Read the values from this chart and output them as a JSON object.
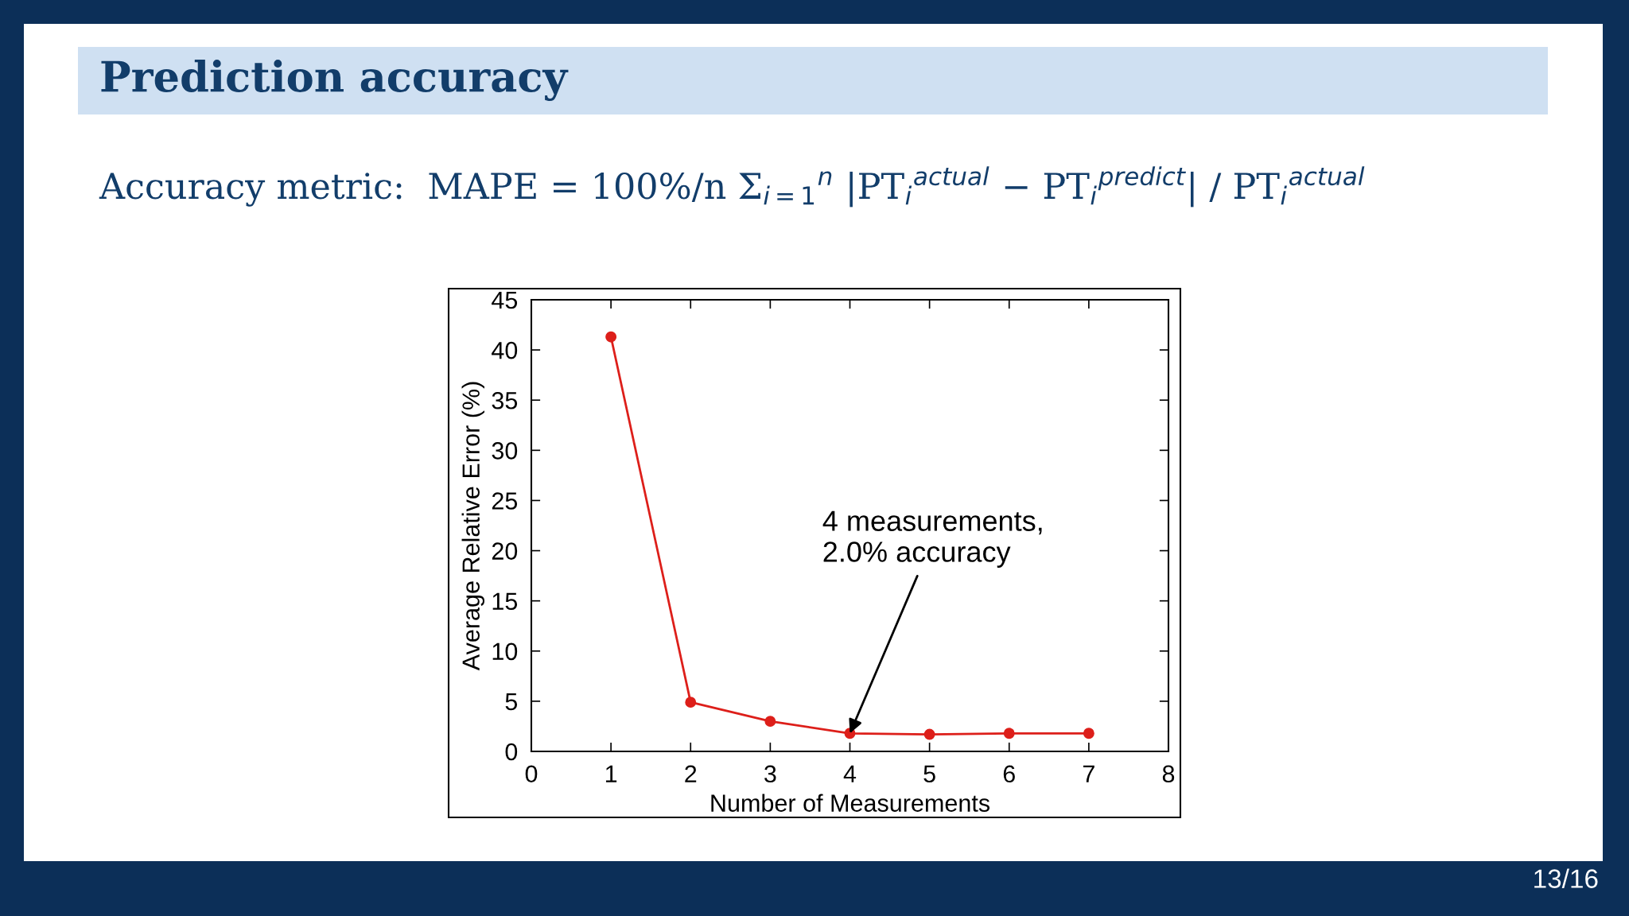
{
  "chart_data": {
    "type": "line",
    "title": "Prediction accuracy",
    "subtitle": "Accuracy metric:  MAPE = 100%/n Σ$_{i=1}$$^{n}$ |PT$_{i}$$^{actual}$ − PT$_{i}$$^{predict}$| / PT$_{i}$$^{actual}$",
    "xlabel": "Number of Measurements",
    "ylabel": "Average Relative Error (%)",
    "x": [
      1,
      2,
      3,
      4,
      5,
      6,
      7
    ],
    "series": [
      {
        "color": "#dd1f1a",
        "values": [
          41.3,
          4.9,
          3.0,
          1.8,
          1.7,
          1.8,
          1.8
        ]
      }
    ],
    "xlim": [
      0,
      8
    ],
    "xticks": [
      0,
      1,
      2,
      3,
      4,
      5,
      6,
      7,
      8
    ],
    "ylim": [
      0,
      45
    ],
    "yticks": [
      0,
      5,
      10,
      15,
      20,
      25,
      30,
      35,
      40,
      45
    ],
    "grid": false,
    "legend": false,
    "marker": "circle",
    "line_style": "solid",
    "annotations": [
      {
        "text": "4 measurements,\n2.0% accuracy",
        "x": 4,
        "y": 1.8
      },
      "13/16"
    ]
  }
}
